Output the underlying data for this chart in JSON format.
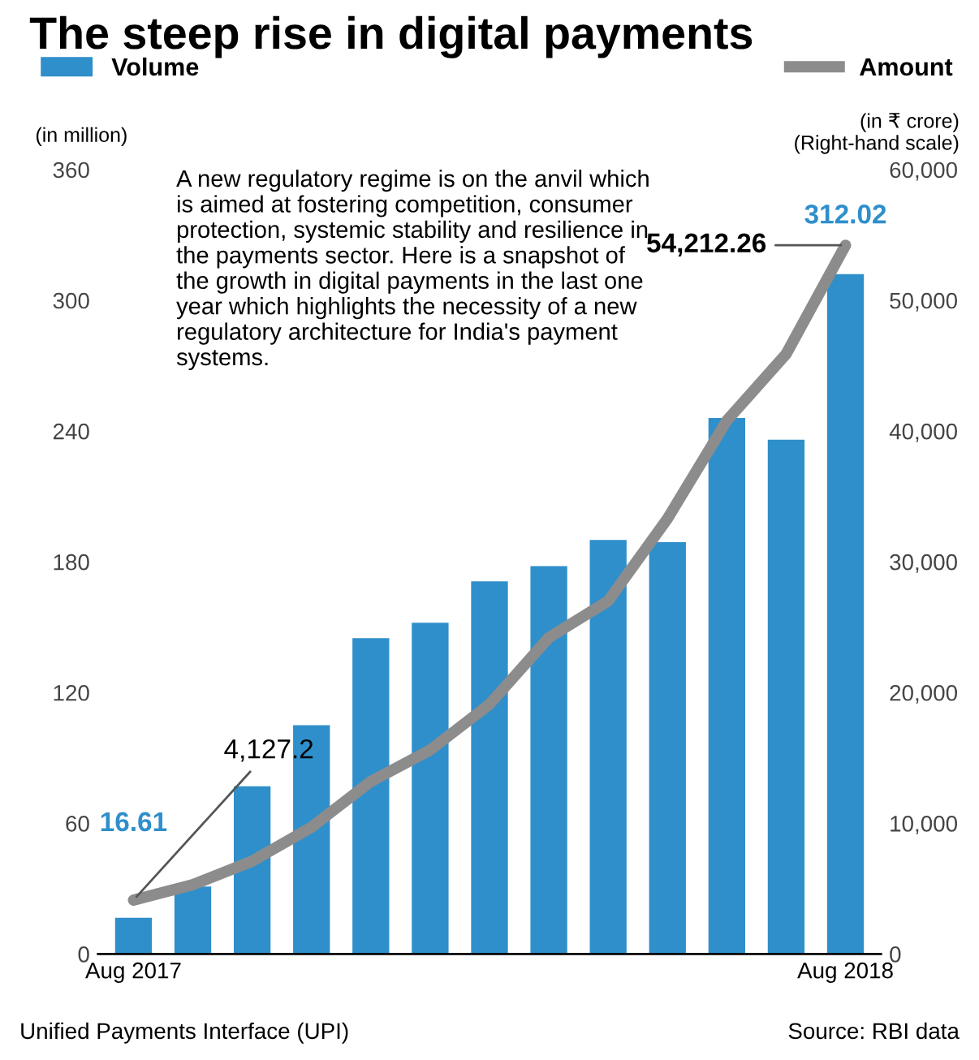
{
  "chart_data": {
    "type": "bar",
    "title": "The steep rise in digital payments",
    "categories": [
      "Aug 2017",
      null,
      null,
      null,
      null,
      null,
      null,
      null,
      null,
      null,
      null,
      null,
      "Aug 2018"
    ],
    "series": [
      {
        "name": "Volume",
        "color": "#2f8fcb",
        "values": [
          16.61,
          31,
          77,
          105,
          145,
          152,
          171,
          178,
          190,
          189,
          246,
          236,
          312.02
        ],
        "value_labels": [
          "16.61",
          null,
          null,
          null,
          null,
          null,
          null,
          null,
          null,
          null,
          null,
          null,
          "312.02"
        ]
      },
      {
        "name": "Amount",
        "type": "line",
        "axis": "y2",
        "color": "#8c8c8c",
        "values": [
          4127.2,
          5300,
          7100,
          9700,
          13200,
          15600,
          19100,
          24200,
          27000,
          33300,
          40800,
          45900,
          54212.26
        ],
        "value_labels": [
          "4,127.2",
          null,
          null,
          null,
          null,
          null,
          null,
          null,
          null,
          null,
          null,
          null,
          "54,212.26"
        ]
      }
    ],
    "ylabel": "(in million)",
    "y2label": "(in ₹ crore)\n(Right-hand scale)",
    "ylim": [
      0,
      360
    ],
    "yticks": [
      0,
      60,
      120,
      180,
      240,
      300,
      360
    ],
    "y2lim": [
      0,
      60000
    ],
    "y2ticks": [
      0,
      {
        "value": 10000,
        "label": "10,000"
      },
      {
        "value": 20000,
        "label": "20,000"
      },
      {
        "value": 30000,
        "label": "30,000"
      },
      {
        "value": 40000,
        "label": "40,000"
      },
      {
        "value": 50000,
        "label": "50,000"
      },
      {
        "value": 60000,
        "label": "60,000"
      }
    ],
    "legend": "top",
    "grid": false,
    "annotations": [
      "A new regulatory regime is on the anvil which is aimed at fostering competition, consumer protection, systemic stability and resilience in the payments sector. Here is a snapshot of the growth in digital payments in the last one year which highlights the necessity of a new regulatory architecture for India's payment systems.",
      "Unified Payments Interface (UPI)",
      "Source: RBI data"
    ]
  }
}
